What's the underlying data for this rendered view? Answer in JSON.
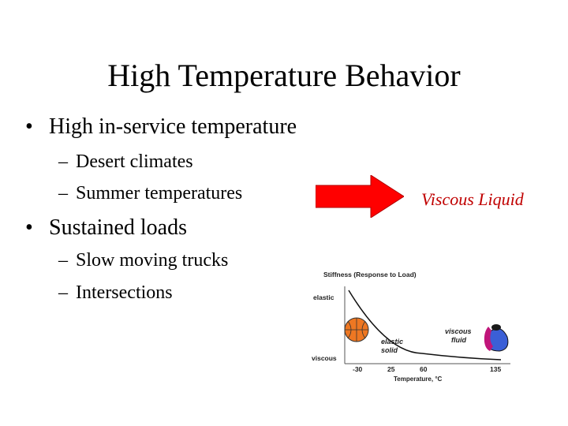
{
  "slide": {
    "title": "High Temperature Behavior",
    "bullets": [
      {
        "text": "High in-service temperature",
        "subitems": [
          "Desert climates",
          "Summer temperatures"
        ]
      },
      {
        "text": "Sustained loads",
        "subitems": [
          "Slow moving trucks",
          "Intersections"
        ]
      }
    ],
    "bullet_symbol": "•",
    "dash_symbol": "–",
    "arrow_color": "#ff0000",
    "result_label": "Viscous Liquid",
    "result_color": "#c00000"
  },
  "figure": {
    "chart_title": "Stiffness (Response to Load)",
    "y_top_label": "elastic",
    "y_bottom_label": "viscous",
    "x_ticks": [
      "-30",
      "25",
      "60",
      "135"
    ],
    "x_axis_label": "Temperature, °C",
    "solid_label_1": "elastic",
    "solid_label_2": "solid",
    "fluid_label_1": "viscous",
    "fluid_label_2": "fluid",
    "solid_icon": "basketball-icon",
    "fluid_icon": "water-balloon-icon"
  }
}
